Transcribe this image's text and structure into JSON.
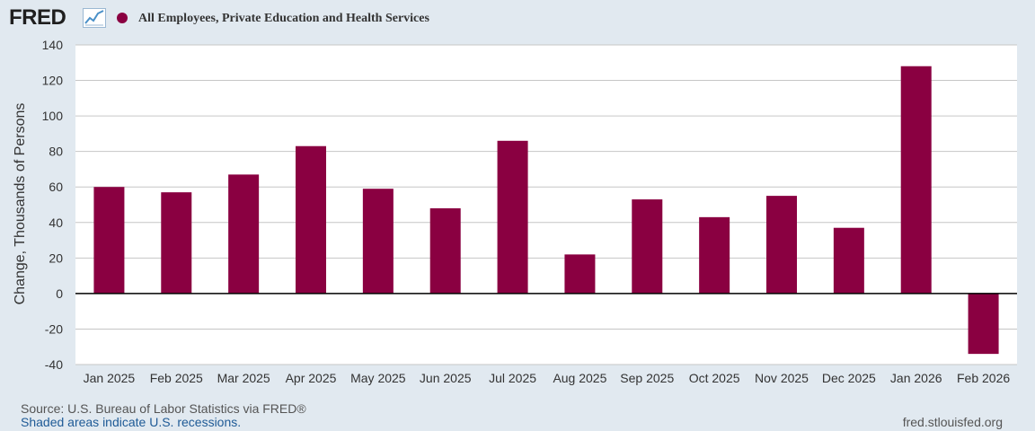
{
  "header": {
    "logo_text": "FRED",
    "logo_icon": "trend-line-icon",
    "series_title": "All Employees, Private Education and Health Services"
  },
  "colors": {
    "bar": "#8a0041",
    "background": "#e1e9f0",
    "plot_bg": "#ffffff",
    "grid": "#c6c6c6",
    "zero_line": "#000000",
    "logo_graph_line": "#4a90c8"
  },
  "chart_data": {
    "type": "bar",
    "title": "All Employees, Private Education and Health Services",
    "xlabel": "",
    "ylabel": "Change, Thousands of Persons",
    "ylim": [
      -40,
      140
    ],
    "yticks": [
      -40,
      -20,
      0,
      20,
      40,
      60,
      80,
      100,
      120,
      140
    ],
    "grid": true,
    "categories": [
      "Jan 2025",
      "Feb 2025",
      "Mar 2025",
      "Apr 2025",
      "May 2025",
      "Jun 2025",
      "Jul 2025",
      "Aug 2025",
      "Sep 2025",
      "Oct 2025",
      "Nov 2025",
      "Dec 2025",
      "Jan 2026",
      "Feb 2026"
    ],
    "series": [
      {
        "name": "All Employees, Private Education and Health Services",
        "values": [
          60,
          57,
          67,
          83,
          59,
          48,
          86,
          22,
          53,
          43,
          55,
          37,
          128,
          -34
        ]
      }
    ]
  },
  "footer": {
    "source": "Source: U.S. Bureau of Labor Statistics via FRED®",
    "recession_note": "Shaded areas indicate U.S. recessions.",
    "url": "fred.stlouisfed.org"
  }
}
